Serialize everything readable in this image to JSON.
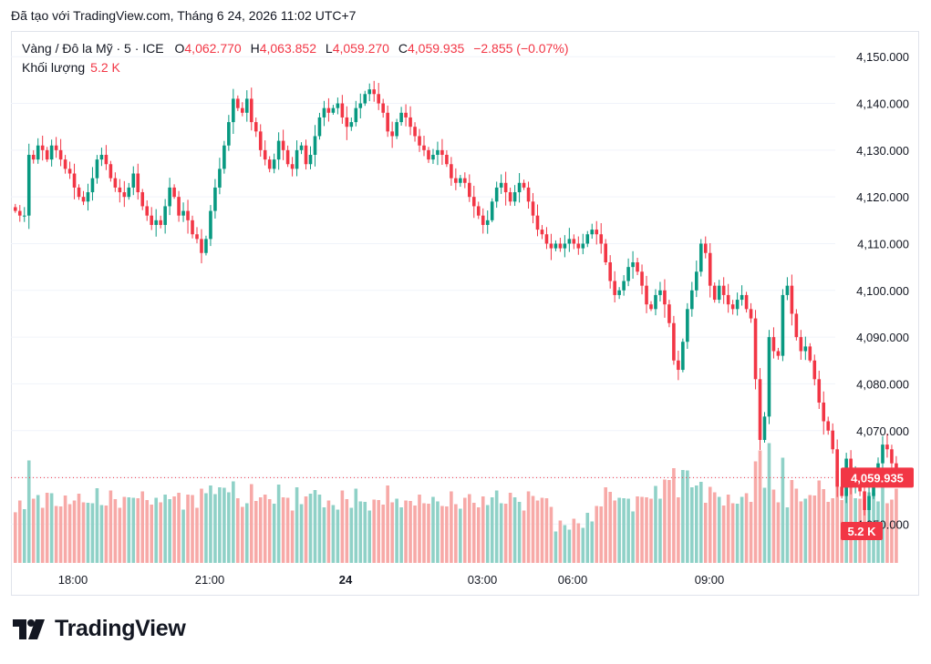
{
  "header": {
    "text": "Đã tạo với TradingView.com, Tháng 6 24, 2026 11:02 UTC+7"
  },
  "legend": {
    "symbol": "Vàng / Đô la Mỹ · 5 · ICE",
    "o_label": "O",
    "o_value": "4,062.770",
    "h_label": "H",
    "h_value": "4,063.852",
    "l_label": "L",
    "l_value": "4,059.270",
    "c_label": "C",
    "c_value": "4,059.935",
    "change": "−2.855 (−0.07%)",
    "volume_label": "Khối lượng",
    "volume_value": "5.2 K"
  },
  "footer": {
    "brand": "TradingView"
  },
  "colors": {
    "up": "#089981",
    "down": "#f23645",
    "vol_up": "#8fd1c7",
    "vol_down": "#f7a9a7",
    "grid": "#f0f3fa",
    "axis_text": "#131722"
  },
  "chart_data": {
    "type": "candlestick",
    "interval_minutes": 5,
    "y_ticks": [
      4050,
      4060,
      4070,
      4080,
      4090,
      4100,
      4110,
      4120,
      4130,
      4140,
      4150
    ],
    "y_tick_labels": [
      "4,050.000",
      "4,060.000",
      "4,070.000",
      "4,080.000",
      "4,090.000",
      "4,100.000",
      "4,110.000",
      "4,120.000",
      "4,130.000",
      "4,140.000",
      "4,150.000"
    ],
    "ylim": [
      4041.5,
      4155.5
    ],
    "x_tick_labels": [
      "18:00",
      "21:00",
      "24",
      "03:00",
      "06:00",
      "09:00"
    ],
    "x_tick_bold": [
      false,
      false,
      true,
      false,
      false,
      false
    ],
    "last_price": 4059.935,
    "last_price_label": "4,059.935",
    "last_volume_label": "5.2 K",
    "closes": [
      4117,
      4116,
      4116,
      4129,
      4128,
      4131,
      4130,
      4128,
      4131,
      4130,
      4128,
      4126,
      4125,
      4122,
      4120,
      4119,
      4121,
      4124,
      4128,
      4129,
      4127,
      4124,
      4122,
      4121,
      4120,
      4122,
      4125,
      4121,
      4118,
      4116,
      4114,
      4115,
      4114,
      4118,
      4122,
      4120,
      4116,
      4117,
      4115,
      4112,
      4111,
      4108,
      4111,
      4117,
      4122,
      4126,
      4131,
      4136,
      4141,
      4139,
      4138,
      4141,
      4136,
      4134,
      4130,
      4128,
      4126,
      4128,
      4132,
      4130,
      4127,
      4126,
      4130,
      4131,
      4127,
      4129,
      4133,
      4137,
      4139,
      4138,
      4139,
      4140,
      4137,
      4135,
      4136,
      4139,
      4140,
      4142,
      4143,
      4142,
      4140,
      4138,
      4134,
      4133,
      4136,
      4138,
      4137,
      4135,
      4133,
      4131,
      4130,
      4128,
      4129,
      4130,
      4129,
      4127,
      4124,
      4123,
      4124,
      4123,
      4120,
      4118,
      4116,
      4114,
      4115,
      4119,
      4122,
      4123,
      4121,
      4119,
      4121,
      4123,
      4122,
      4119,
      4116,
      4113,
      4112,
      4110,
      4109,
      4110,
      4109,
      4110,
      4111,
      4110,
      4109,
      4110,
      4112,
      4113,
      4112,
      4110,
      4106,
      4102,
      4099,
      4100,
      4102,
      4105,
      4106,
      4104,
      4101,
      4097,
      4096,
      4099,
      4100,
      4097,
      4093,
      4085,
      4083,
      4089,
      4096,
      4100,
      4104,
      4110,
      4108,
      4101,
      4098,
      4101,
      4099,
      4097,
      4096,
      4098,
      4099,
      4096,
      4094,
      4081,
      4068,
      4073,
      4090,
      4087,
      4086,
      4099,
      4101,
      4095,
      4090,
      4087,
      4088,
      4085,
      4081,
      4076,
      4072,
      4070,
      4066,
      4058,
      4056,
      4064,
      4058,
      4060,
      4057,
      4053,
      4056,
      4060,
      4063,
      4067,
      4066,
      4063,
      4060
    ]
  }
}
